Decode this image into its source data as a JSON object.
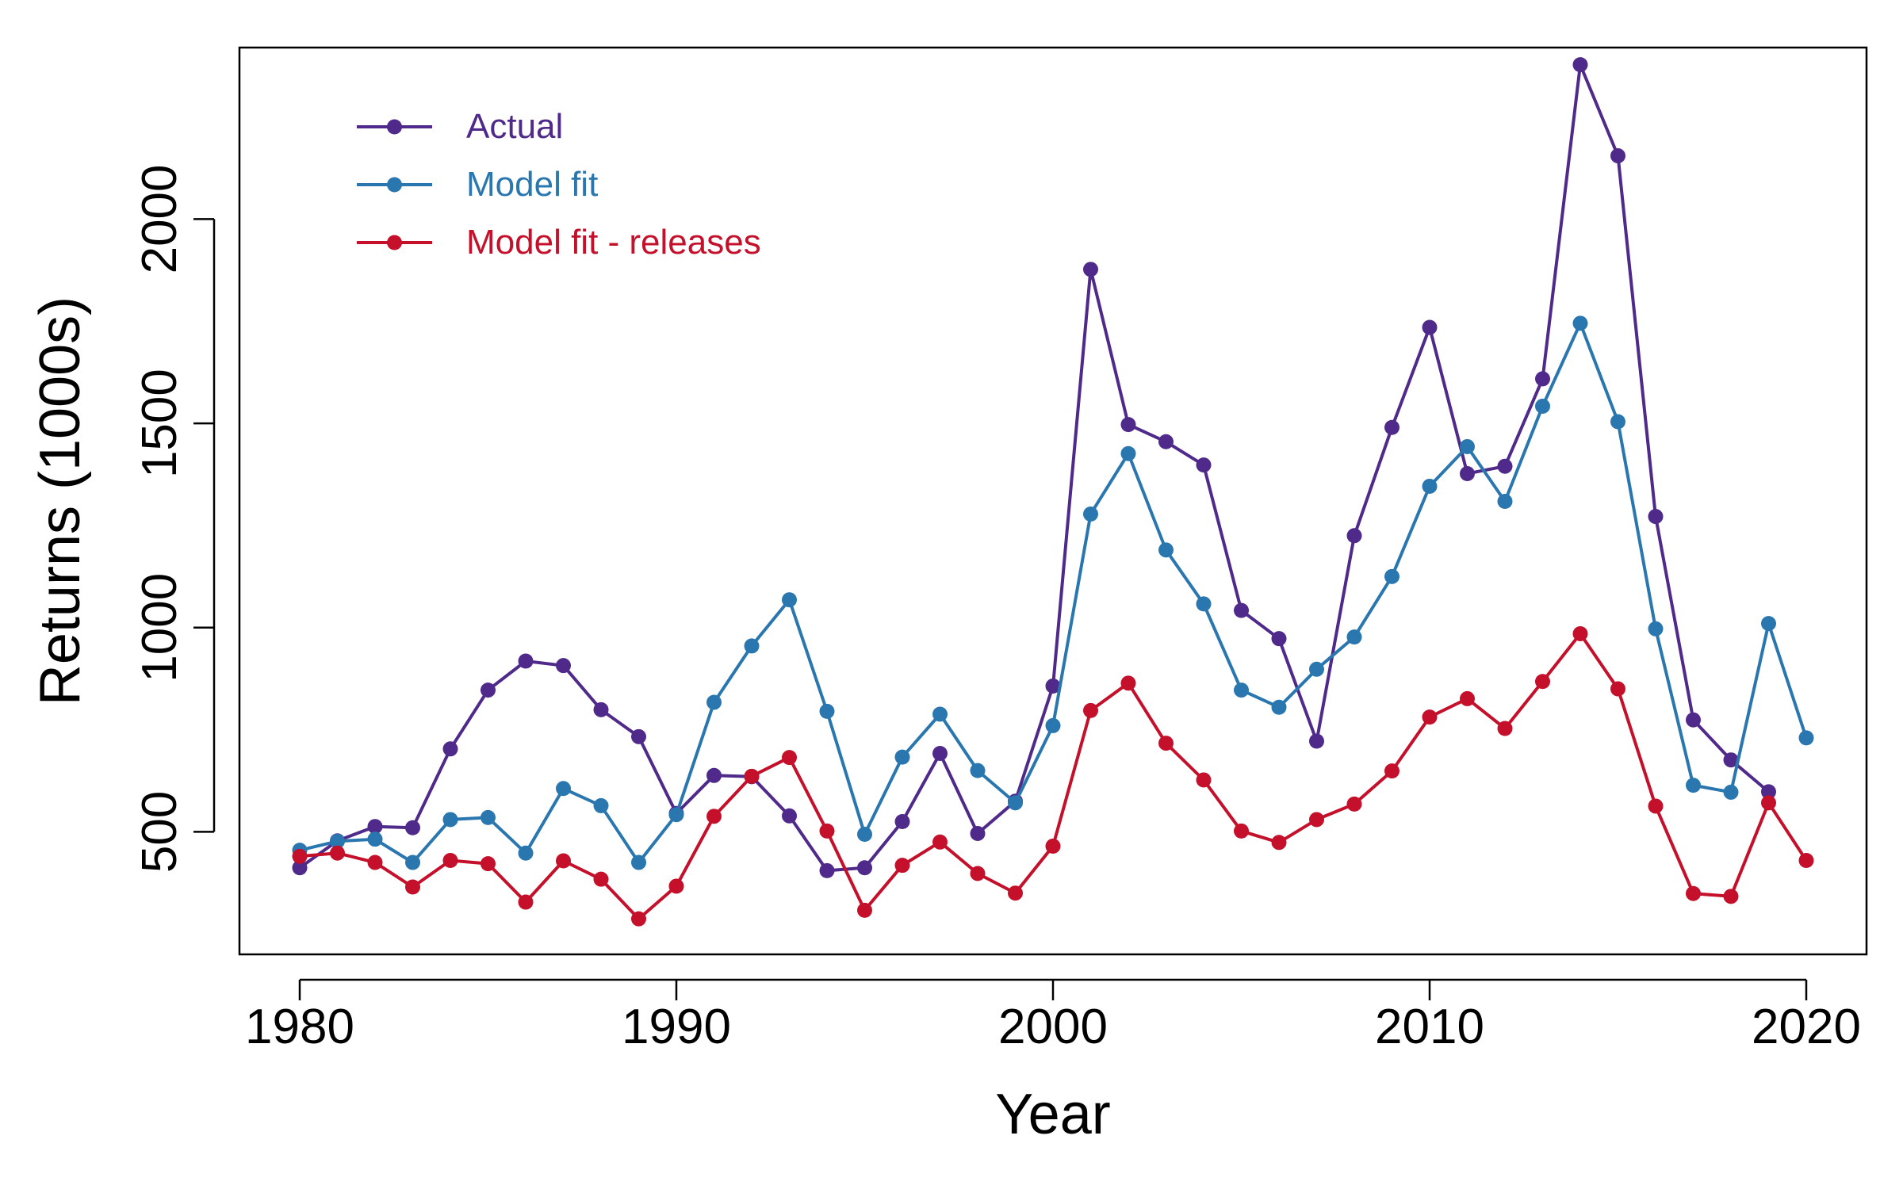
{
  "chart_data": {
    "type": "line",
    "xlabel": "Year",
    "ylabel": "Returns (1000s)",
    "xlim": [
      1978.4,
      2021.6
    ],
    "ylim": [
      200,
      2420
    ],
    "x_ticks": [
      1980,
      1990,
      2000,
      2010,
      2020
    ],
    "y_ticks": [
      500,
      1000,
      1500,
      2000
    ],
    "grid": false,
    "legend_position": "top-left",
    "series": [
      {
        "name": "Actual",
        "color": "#4f2a8a",
        "x": [
          1980,
          1981,
          1982,
          1983,
          1984,
          1985,
          1986,
          1987,
          1988,
          1989,
          1990,
          1991,
          1992,
          1993,
          1994,
          1995,
          1996,
          1997,
          1998,
          1999,
          2000,
          2001,
          2002,
          2003,
          2004,
          2005,
          2006,
          2007,
          2008,
          2009,
          2010,
          2011,
          2012,
          2013,
          2014,
          2015,
          2016,
          2017,
          2018,
          2019
        ],
        "values": [
          412,
          478,
          513,
          510,
          703,
          847,
          918,
          907,
          799,
          733,
          545,
          638,
          635,
          539,
          405,
          412,
          525,
          692,
          496,
          575,
          857,
          1877,
          1497,
          1455,
          1398,
          1042,
          973,
          722,
          1225,
          1490,
          1735,
          1377,
          1395,
          1609,
          2378,
          2155,
          1272,
          774,
          676,
          598
        ]
      },
      {
        "name": "Model fit",
        "color": "#2a77b0",
        "x": [
          1980,
          1981,
          1982,
          1983,
          1984,
          1985,
          1986,
          1987,
          1988,
          1989,
          1990,
          1991,
          1992,
          1993,
          1994,
          1995,
          1996,
          1997,
          1998,
          1999,
          2000,
          2001,
          2002,
          2003,
          2004,
          2005,
          2006,
          2007,
          2008,
          2009,
          2010,
          2011,
          2012,
          2013,
          2014,
          2015,
          2016,
          2017,
          2018,
          2019,
          2020
        ],
        "values": [
          455,
          477,
          482,
          425,
          530,
          535,
          448,
          606,
          564,
          425,
          542,
          817,
          955,
          1068,
          795,
          494,
          683,
          788,
          650,
          571,
          760,
          1278,
          1426,
          1190,
          1058,
          847,
          805,
          898,
          977,
          1125,
          1346,
          1443,
          1309,
          1542,
          1745,
          1504,
          997,
          614,
          597,
          1010,
          730
        ]
      },
      {
        "name": "Model fit - releases",
        "color": "#c4102a",
        "x": [
          1980,
          1981,
          1982,
          1983,
          1984,
          1985,
          1986,
          1987,
          1988,
          1989,
          1990,
          1991,
          1992,
          1993,
          1994,
          1995,
          1996,
          1997,
          1998,
          1999,
          2000,
          2001,
          2002,
          2003,
          2004,
          2005,
          2006,
          2007,
          2008,
          2009,
          2010,
          2011,
          2012,
          2013,
          2014,
          2015,
          2016,
          2017,
          2018,
          2019,
          2020
        ],
        "values": [
          440,
          448,
          425,
          365,
          430,
          422,
          328,
          429,
          384,
          287,
          367,
          538,
          636,
          682,
          502,
          308,
          418,
          475,
          398,
          350,
          465,
          797,
          864,
          717,
          627,
          502,
          474,
          530,
          568,
          649,
          781,
          826,
          753,
          868,
          985,
          850,
          563,
          349,
          342,
          571,
          430
        ]
      }
    ]
  }
}
